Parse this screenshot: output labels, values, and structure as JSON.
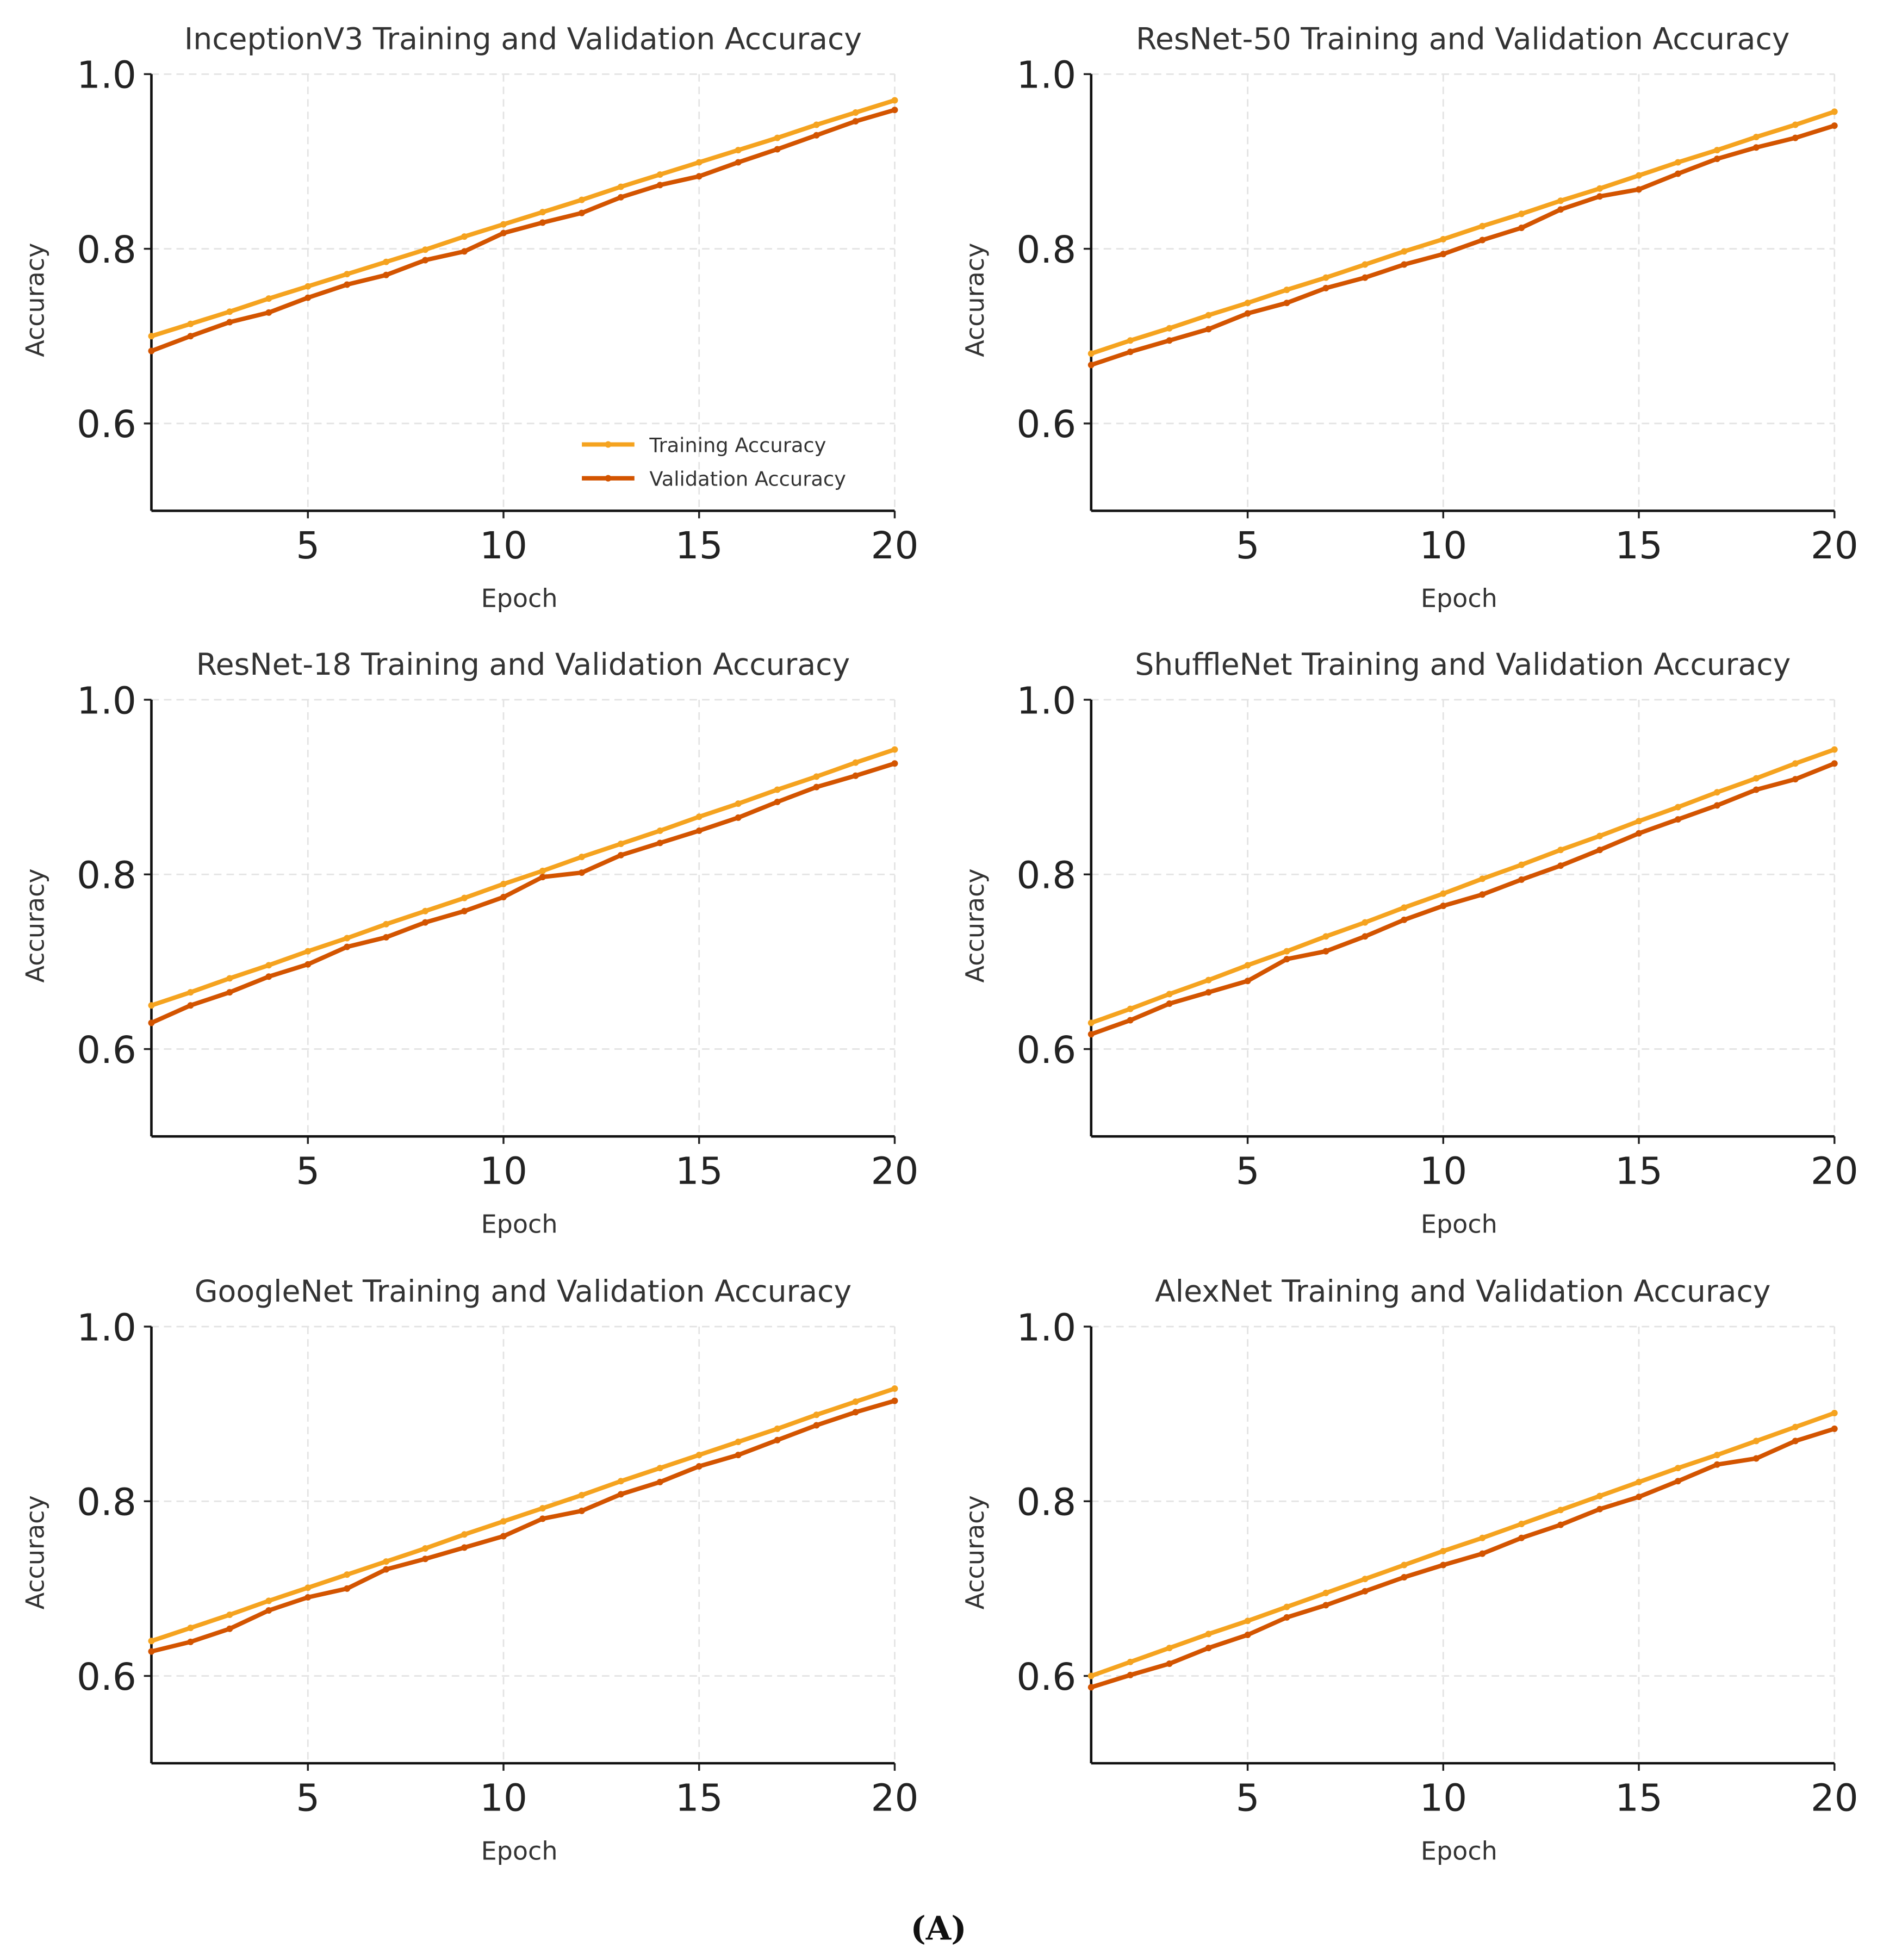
{
  "caption": "(A)",
  "colors": {
    "training": "#f5a31f",
    "validation": "#d35400",
    "grid": "#e3e3e3"
  },
  "chart_data": [
    {
      "type": "line",
      "title": "InceptionV3 Training and Validation Accuracy",
      "xlabel": "Epoch",
      "ylabel": "Accuracy",
      "xlim": [
        1,
        20
      ],
      "ylim": [
        0.5,
        1.0
      ],
      "xticks": [
        "5",
        "10",
        "15",
        "20"
      ],
      "yticks": [
        "0.6",
        "0.8",
        "1.0"
      ],
      "grid": true,
      "legend": {
        "placement": "lower-right",
        "entries": [
          "Training Accuracy",
          "Validation Accuracy"
        ]
      },
      "x": [
        1,
        2,
        3,
        4,
        5,
        6,
        7,
        8,
        9,
        10,
        11,
        12,
        13,
        14,
        15,
        16,
        17,
        18,
        19,
        20
      ],
      "series": [
        {
          "name": "Training Accuracy",
          "values": [
            0.7,
            0.714,
            0.728,
            0.743,
            0.757,
            0.771,
            0.785,
            0.799,
            0.814,
            0.828,
            0.842,
            0.856,
            0.871,
            0.885,
            0.899,
            0.913,
            0.927,
            0.942,
            0.956,
            0.97
          ]
        },
        {
          "name": "Validation Accuracy",
          "values": [
            0.683,
            0.7,
            0.716,
            0.727,
            0.744,
            0.759,
            0.77,
            0.787,
            0.797,
            0.818,
            0.83,
            0.841,
            0.859,
            0.873,
            0.883,
            0.899,
            0.914,
            0.93,
            0.946,
            0.959
          ]
        }
      ]
    },
    {
      "type": "line",
      "title": "ResNet-50 Training and Validation Accuracy",
      "xlabel": "Epoch",
      "ylabel": "Accuracy",
      "xlim": [
        1,
        20
      ],
      "ylim": [
        0.5,
        1.0
      ],
      "xticks": [
        "5",
        "10",
        "15",
        "20"
      ],
      "yticks": [
        "0.6",
        "0.8",
        "1.0"
      ],
      "grid": true,
      "x": [
        1,
        2,
        3,
        4,
        5,
        6,
        7,
        8,
        9,
        10,
        11,
        12,
        13,
        14,
        15,
        16,
        17,
        18,
        19,
        20
      ],
      "series": [
        {
          "name": "Training Accuracy",
          "values": [
            0.68,
            0.695,
            0.709,
            0.724,
            0.738,
            0.753,
            0.767,
            0.782,
            0.797,
            0.811,
            0.826,
            0.84,
            0.855,
            0.869,
            0.884,
            0.899,
            0.913,
            0.928,
            0.942,
            0.957
          ]
        },
        {
          "name": "Validation Accuracy",
          "values": [
            0.667,
            0.682,
            0.695,
            0.708,
            0.726,
            0.738,
            0.755,
            0.767,
            0.782,
            0.794,
            0.81,
            0.824,
            0.845,
            0.86,
            0.868,
            0.886,
            0.903,
            0.916,
            0.927,
            0.941
          ]
        }
      ]
    },
    {
      "type": "line",
      "title": "ResNet-18 Training and Validation Accuracy",
      "xlabel": "Epoch",
      "ylabel": "Accuracy",
      "xlim": [
        1,
        20
      ],
      "ylim": [
        0.5,
        1.0
      ],
      "xticks": [
        "5",
        "10",
        "15",
        "20"
      ],
      "yticks": [
        "0.6",
        "0.8",
        "1.0"
      ],
      "grid": true,
      "x": [
        1,
        2,
        3,
        4,
        5,
        6,
        7,
        8,
        9,
        10,
        11,
        12,
        13,
        14,
        15,
        16,
        17,
        18,
        19,
        20
      ],
      "series": [
        {
          "name": "Training Accuracy",
          "values": [
            0.65,
            0.665,
            0.681,
            0.696,
            0.712,
            0.727,
            0.743,
            0.758,
            0.773,
            0.789,
            0.804,
            0.82,
            0.835,
            0.85,
            0.866,
            0.881,
            0.897,
            0.912,
            0.928,
            0.943
          ]
        },
        {
          "name": "Validation Accuracy",
          "values": [
            0.63,
            0.65,
            0.665,
            0.683,
            0.697,
            0.717,
            0.728,
            0.745,
            0.758,
            0.774,
            0.797,
            0.802,
            0.822,
            0.836,
            0.85,
            0.865,
            0.883,
            0.9,
            0.913,
            0.927
          ]
        }
      ]
    },
    {
      "type": "line",
      "title": "ShuffleNet Training and Validation Accuracy",
      "xlabel": "Epoch",
      "ylabel": "Accuracy",
      "xlim": [
        1,
        20
      ],
      "ylim": [
        0.5,
        1.0
      ],
      "xticks": [
        "5",
        "10",
        "15",
        "20"
      ],
      "yticks": [
        "0.6",
        "0.8",
        "1.0"
      ],
      "grid": true,
      "x": [
        1,
        2,
        3,
        4,
        5,
        6,
        7,
        8,
        9,
        10,
        11,
        12,
        13,
        14,
        15,
        16,
        17,
        18,
        19,
        20
      ],
      "series": [
        {
          "name": "Training Accuracy",
          "values": [
            0.63,
            0.646,
            0.663,
            0.679,
            0.696,
            0.712,
            0.729,
            0.745,
            0.762,
            0.778,
            0.795,
            0.811,
            0.828,
            0.844,
            0.861,
            0.877,
            0.894,
            0.91,
            0.927,
            0.943
          ]
        },
        {
          "name": "Validation Accuracy",
          "values": [
            0.617,
            0.633,
            0.652,
            0.665,
            0.678,
            0.703,
            0.712,
            0.729,
            0.748,
            0.764,
            0.777,
            0.794,
            0.81,
            0.828,
            0.847,
            0.863,
            0.879,
            0.897,
            0.909,
            0.927
          ]
        }
      ]
    },
    {
      "type": "line",
      "title": "GoogleNet Training and Validation Accuracy",
      "xlabel": "Epoch",
      "ylabel": "Accuracy",
      "xlim": [
        1,
        20
      ],
      "ylim": [
        0.5,
        1.0
      ],
      "xticks": [
        "5",
        "10",
        "15",
        "20"
      ],
      "yticks": [
        "0.6",
        "0.8",
        "1.0"
      ],
      "grid": true,
      "x": [
        1,
        2,
        3,
        4,
        5,
        6,
        7,
        8,
        9,
        10,
        11,
        12,
        13,
        14,
        15,
        16,
        17,
        18,
        19,
        20
      ],
      "series": [
        {
          "name": "Training Accuracy",
          "values": [
            0.64,
            0.655,
            0.67,
            0.686,
            0.701,
            0.716,
            0.731,
            0.746,
            0.762,
            0.777,
            0.792,
            0.807,
            0.823,
            0.838,
            0.853,
            0.868,
            0.883,
            0.899,
            0.914,
            0.929
          ]
        },
        {
          "name": "Validation Accuracy",
          "values": [
            0.628,
            0.639,
            0.654,
            0.675,
            0.69,
            0.7,
            0.722,
            0.734,
            0.747,
            0.76,
            0.78,
            0.789,
            0.808,
            0.822,
            0.84,
            0.853,
            0.87,
            0.887,
            0.902,
            0.915
          ]
        }
      ]
    },
    {
      "type": "line",
      "title": "AlexNet Training and Validation Accuracy",
      "xlabel": "Epoch",
      "ylabel": "Accuracy",
      "xlim": [
        1,
        20
      ],
      "ylim": [
        0.5,
        1.0
      ],
      "xticks": [
        "5",
        "10",
        "15",
        "20"
      ],
      "yticks": [
        "0.6",
        "0.8",
        "1.0"
      ],
      "grid": true,
      "x": [
        1,
        2,
        3,
        4,
        5,
        6,
        7,
        8,
        9,
        10,
        11,
        12,
        13,
        14,
        15,
        16,
        17,
        18,
        19,
        20
      ],
      "series": [
        {
          "name": "Training Accuracy",
          "values": [
            0.6,
            0.616,
            0.632,
            0.648,
            0.663,
            0.679,
            0.695,
            0.711,
            0.727,
            0.743,
            0.758,
            0.774,
            0.79,
            0.806,
            0.822,
            0.838,
            0.853,
            0.869,
            0.885,
            0.901
          ]
        },
        {
          "name": "Validation Accuracy",
          "values": [
            0.587,
            0.601,
            0.614,
            0.632,
            0.647,
            0.667,
            0.681,
            0.697,
            0.713,
            0.727,
            0.74,
            0.758,
            0.773,
            0.791,
            0.805,
            0.823,
            0.842,
            0.849,
            0.869,
            0.883
          ]
        }
      ]
    }
  ]
}
